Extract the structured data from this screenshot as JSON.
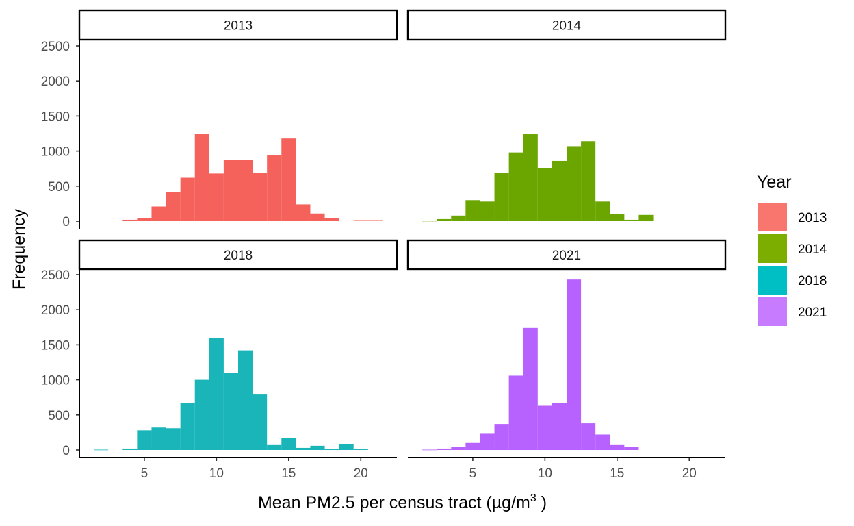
{
  "chart_data": {
    "type": "bar",
    "subtype": "faceted histogram",
    "xlabel_main": "Mean PM2.5 per census tract (µg/m",
    "xlabel_sup": "3",
    "xlabel_end": " )",
    "ylabel": "Frequency",
    "x_ticks": [
      "5",
      "10",
      "15",
      "20"
    ],
    "y_ticks": [
      "0",
      "500",
      "1000",
      "1500",
      "2000",
      "2500"
    ],
    "xlim": [
      0.5,
      22.5
    ],
    "ylim": [
      0,
      2500
    ],
    "bin_width": 1,
    "legend": {
      "title": "Year",
      "placement": "right",
      "entries": [
        {
          "label": "2013",
          "color": "#F8766D"
        },
        {
          "label": "2014",
          "color": "#7CAE00"
        },
        {
          "label": "2018",
          "color": "#00BFC4"
        },
        {
          "label": "2021",
          "color": "#C77CFF"
        }
      ]
    },
    "facets": [
      {
        "label": "2013",
        "color": "#F5625C",
        "bins": [
          {
            "x": 4,
            "y": 20
          },
          {
            "x": 5,
            "y": 40
          },
          {
            "x": 6,
            "y": 210
          },
          {
            "x": 7,
            "y": 420
          },
          {
            "x": 8,
            "y": 620
          },
          {
            "x": 9,
            "y": 1240
          },
          {
            "x": 10,
            "y": 680
          },
          {
            "x": 11,
            "y": 870
          },
          {
            "x": 12,
            "y": 870
          },
          {
            "x": 13,
            "y": 690
          },
          {
            "x": 14,
            "y": 940
          },
          {
            "x": 15,
            "y": 1180
          },
          {
            "x": 16,
            "y": 240
          },
          {
            "x": 17,
            "y": 110
          },
          {
            "x": 18,
            "y": 40
          },
          {
            "x": 19,
            "y": 10
          },
          {
            "x": 20,
            "y": 15
          },
          {
            "x": 21,
            "y": 15
          }
        ]
      },
      {
        "label": "2014",
        "color": "#6BA500",
        "bins": [
          {
            "x": 2,
            "y": 5
          },
          {
            "x": 3,
            "y": 30
          },
          {
            "x": 4,
            "y": 80
          },
          {
            "x": 5,
            "y": 300
          },
          {
            "x": 6,
            "y": 280
          },
          {
            "x": 7,
            "y": 690
          },
          {
            "x": 8,
            "y": 980
          },
          {
            "x": 9,
            "y": 1240
          },
          {
            "x": 10,
            "y": 760
          },
          {
            "x": 11,
            "y": 860
          },
          {
            "x": 12,
            "y": 1070
          },
          {
            "x": 13,
            "y": 1140
          },
          {
            "x": 14,
            "y": 280
          },
          {
            "x": 15,
            "y": 100
          },
          {
            "x": 16,
            "y": 20
          },
          {
            "x": 17,
            "y": 90
          }
        ]
      },
      {
        "label": "2018",
        "color": "#1AB5B8",
        "bins": [
          {
            "x": 2,
            "y": 5
          },
          {
            "x": 4,
            "y": 20
          },
          {
            "x": 5,
            "y": 280
          },
          {
            "x": 6,
            "y": 320
          },
          {
            "x": 7,
            "y": 310
          },
          {
            "x": 8,
            "y": 670
          },
          {
            "x": 9,
            "y": 1000
          },
          {
            "x": 10,
            "y": 1600
          },
          {
            "x": 11,
            "y": 1100
          },
          {
            "x": 12,
            "y": 1420
          },
          {
            "x": 13,
            "y": 800
          },
          {
            "x": 14,
            "y": 70
          },
          {
            "x": 15,
            "y": 170
          },
          {
            "x": 16,
            "y": 30
          },
          {
            "x": 17,
            "y": 60
          },
          {
            "x": 18,
            "y": 10
          },
          {
            "x": 19,
            "y": 80
          },
          {
            "x": 20,
            "y": 10
          }
        ]
      },
      {
        "label": "2021",
        "color": "#B761FF",
        "bins": [
          {
            "x": 2,
            "y": 5
          },
          {
            "x": 3,
            "y": 20
          },
          {
            "x": 4,
            "y": 40
          },
          {
            "x": 5,
            "y": 100
          },
          {
            "x": 6,
            "y": 240
          },
          {
            "x": 7,
            "y": 370
          },
          {
            "x": 8,
            "y": 1060
          },
          {
            "x": 9,
            "y": 1740
          },
          {
            "x": 10,
            "y": 630
          },
          {
            "x": 11,
            "y": 670
          },
          {
            "x": 12,
            "y": 2430
          },
          {
            "x": 13,
            "y": 380
          },
          {
            "x": 14,
            "y": 220
          },
          {
            "x": 15,
            "y": 70
          },
          {
            "x": 16,
            "y": 40
          }
        ]
      }
    ]
  }
}
